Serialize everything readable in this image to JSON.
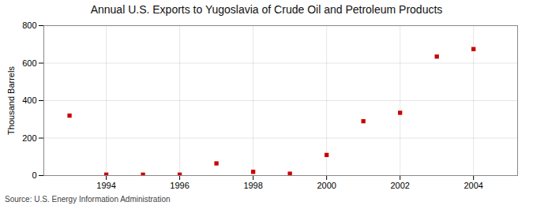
{
  "chart_data": {
    "type": "scatter",
    "title": "Annual U.S. Exports to Yugoslavia of Crude Oil and Petroleum Products",
    "ylabel": "Thousand Barrels",
    "source": "Source: U.S. Energy Information Administration",
    "x": [
      1993,
      1994,
      1995,
      1996,
      1997,
      1998,
      1999,
      2000,
      2001,
      2002,
      2003,
      2004
    ],
    "values": [
      320,
      5,
      5,
      5,
      65,
      20,
      10,
      110,
      290,
      335,
      635,
      675
    ],
    "color": "#cc0000",
    "marker": "square",
    "xlim": [
      1992.3,
      2005.2
    ],
    "xticks": [
      1994,
      1996,
      1998,
      2000,
      2002,
      2004
    ],
    "ylim": [
      0,
      800
    ],
    "yticks": [
      0,
      200,
      400,
      600,
      800
    ],
    "grid": true
  }
}
